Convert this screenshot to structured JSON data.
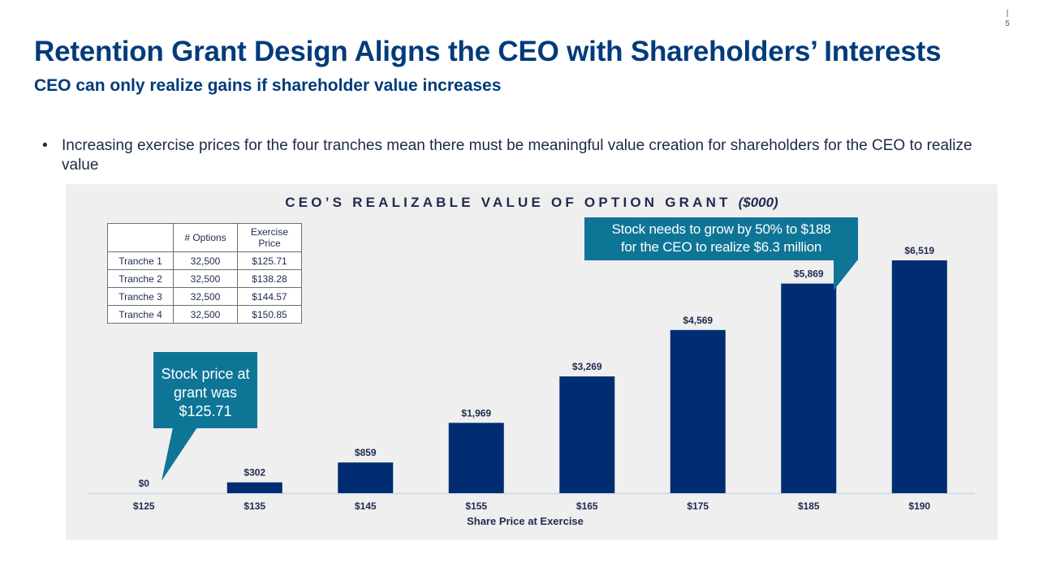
{
  "page": {
    "number": "5"
  },
  "header": {
    "title": "Retention Grant Design Aligns the CEO with Shareholders’ Interests",
    "subtitle": "CEO can only realize gains if shareholder value increases"
  },
  "bullets": [
    {
      "marker": "•",
      "text": "Increasing exercise prices for the four tranches mean there must be meaningful  value creation for shareholders for the CEO to realize value"
    }
  ],
  "tranche_table": {
    "headers": [
      "",
      "# Options",
      "Exercise Price"
    ],
    "rows": [
      [
        "Tranche  1",
        "32,500",
        "$125.71"
      ],
      [
        "Tranche  2",
        "32,500",
        "$138.28"
      ],
      [
        "Tranche  3",
        "32,500",
        "$144.57"
      ],
      [
        "Tranche  4",
        "32,500",
        "$150.85"
      ]
    ]
  },
  "callouts": {
    "grant": "Stock price at grant was $125.71",
    "target_line1": "Stock needs to grow by 50% to $188",
    "target_line2": "for the CEO to realize $6.3 million"
  },
  "colors": {
    "bar": "#002d72",
    "title": "#003b7a",
    "callout": "#0e7597",
    "panel": "#efefef"
  },
  "chart_data": {
    "type": "bar",
    "title": "CEO’S REALIZABLE VALUE OF OPTION GRANT",
    "title_units": "($000)",
    "xlabel": "Share Price at Exercise",
    "ylabel": "",
    "categories": [
      "$125",
      "$135",
      "$145",
      "$155",
      "$165",
      "$175",
      "$185",
      "$190"
    ],
    "values": [
      0,
      302,
      859,
      1969,
      3269,
      4569,
      5869,
      6519
    ],
    "data_labels": [
      "$0",
      "$302",
      "$859",
      "$1,969",
      "$3,269",
      "$4,569",
      "$5,869",
      "$6,519"
    ],
    "ylim": [
      0,
      6519
    ],
    "grid": false,
    "legend": "none"
  }
}
